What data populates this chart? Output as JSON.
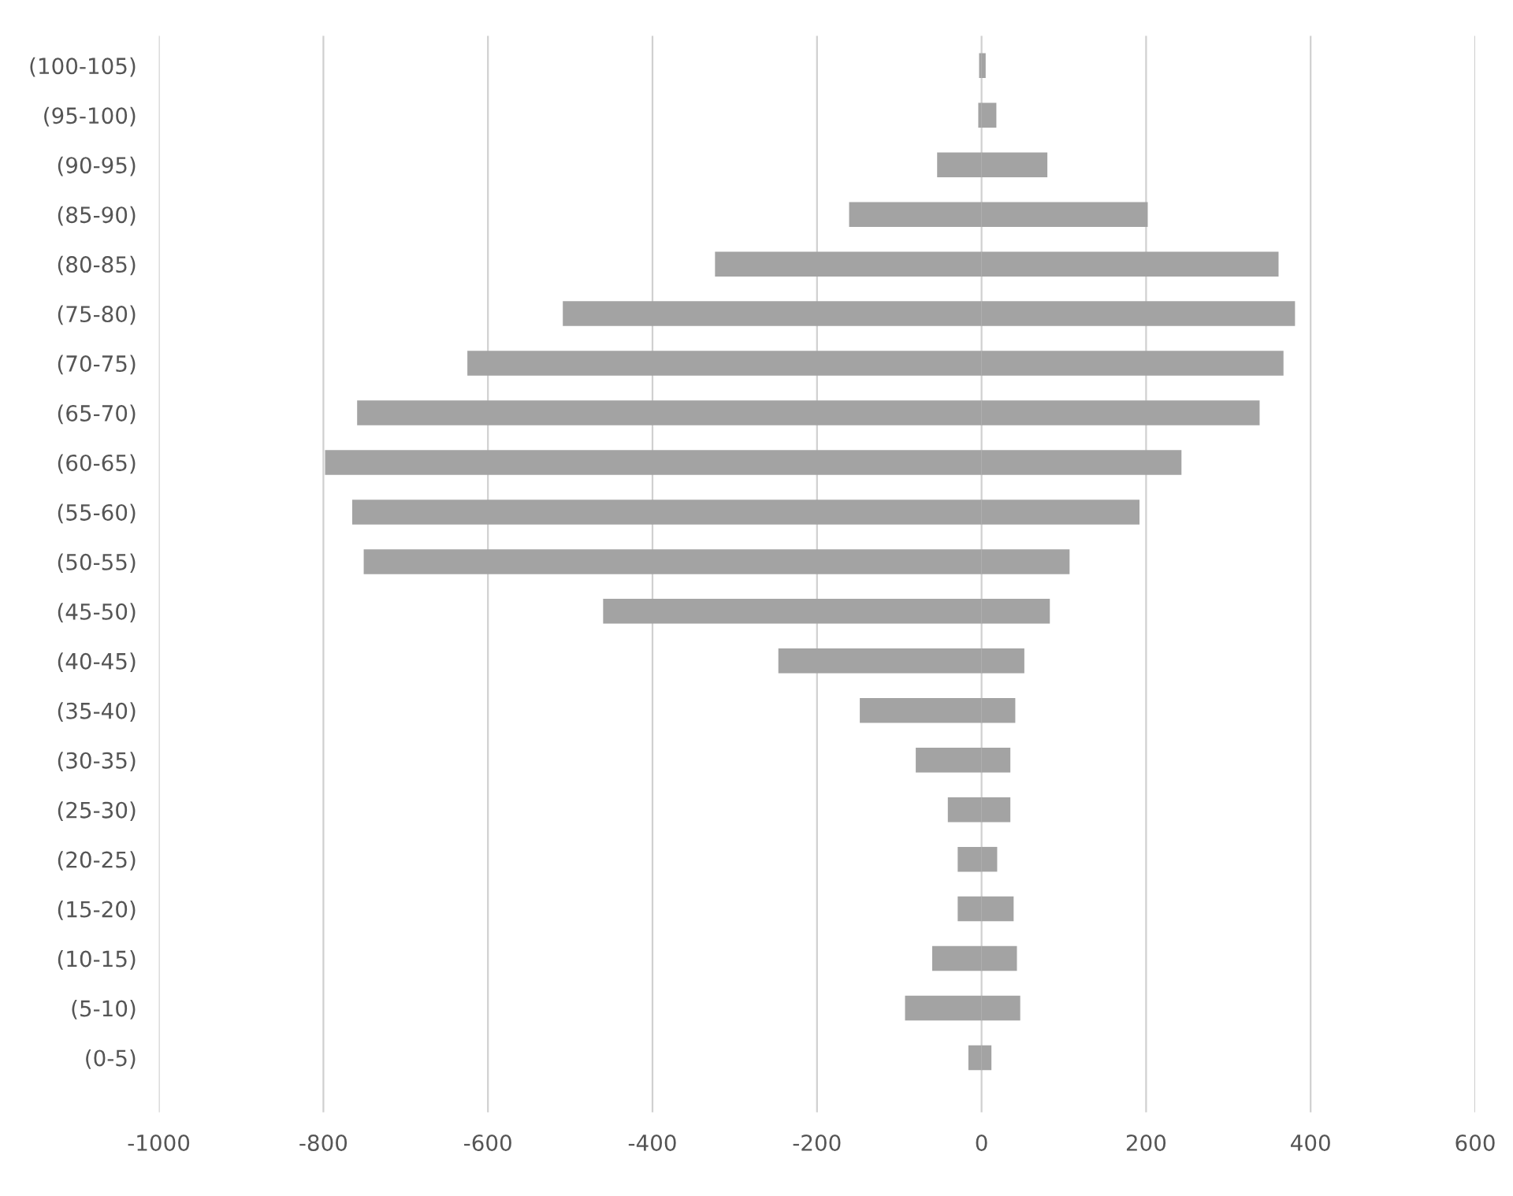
{
  "chart_data": {
    "type": "bar",
    "orientation": "horizontal",
    "stacked": true,
    "categories": [
      "(100-105)",
      "(95-100)",
      "(90-95)",
      "(85-90)",
      "(80-85)",
      "(75-80)",
      "(70-75)",
      "(65-70)",
      "(60-65)",
      "(55-60)",
      "(50-55)",
      "(45-50)",
      "(40-45)",
      "(35-40)",
      "(30-35)",
      "(25-30)",
      "(20-25)",
      "(15-20)",
      "(10-15)",
      "(5-10)",
      "(0-5)"
    ],
    "series": [
      {
        "color": "#a3a3a3",
        "values": [
          -3,
          -4,
          -54,
          -161,
          -324,
          -509,
          -625,
          -759,
          -798,
          -765,
          -751,
          -460,
          -247,
          -148,
          -80,
          -41,
          -29,
          -29,
          -60,
          -93,
          -16
        ]
      },
      {
        "color": "#a3a3a3",
        "values": [
          5,
          18,
          80,
          202,
          361,
          381,
          367,
          338,
          243,
          192,
          107,
          83,
          52,
          41,
          35,
          35,
          19,
          39,
          43,
          47,
          12
        ]
      }
    ],
    "xlim": [
      -1000,
      600
    ],
    "xticks": [
      -1000,
      -800,
      -600,
      -400,
      -200,
      0,
      200,
      400,
      600
    ],
    "grid": "x",
    "legend": false
  }
}
